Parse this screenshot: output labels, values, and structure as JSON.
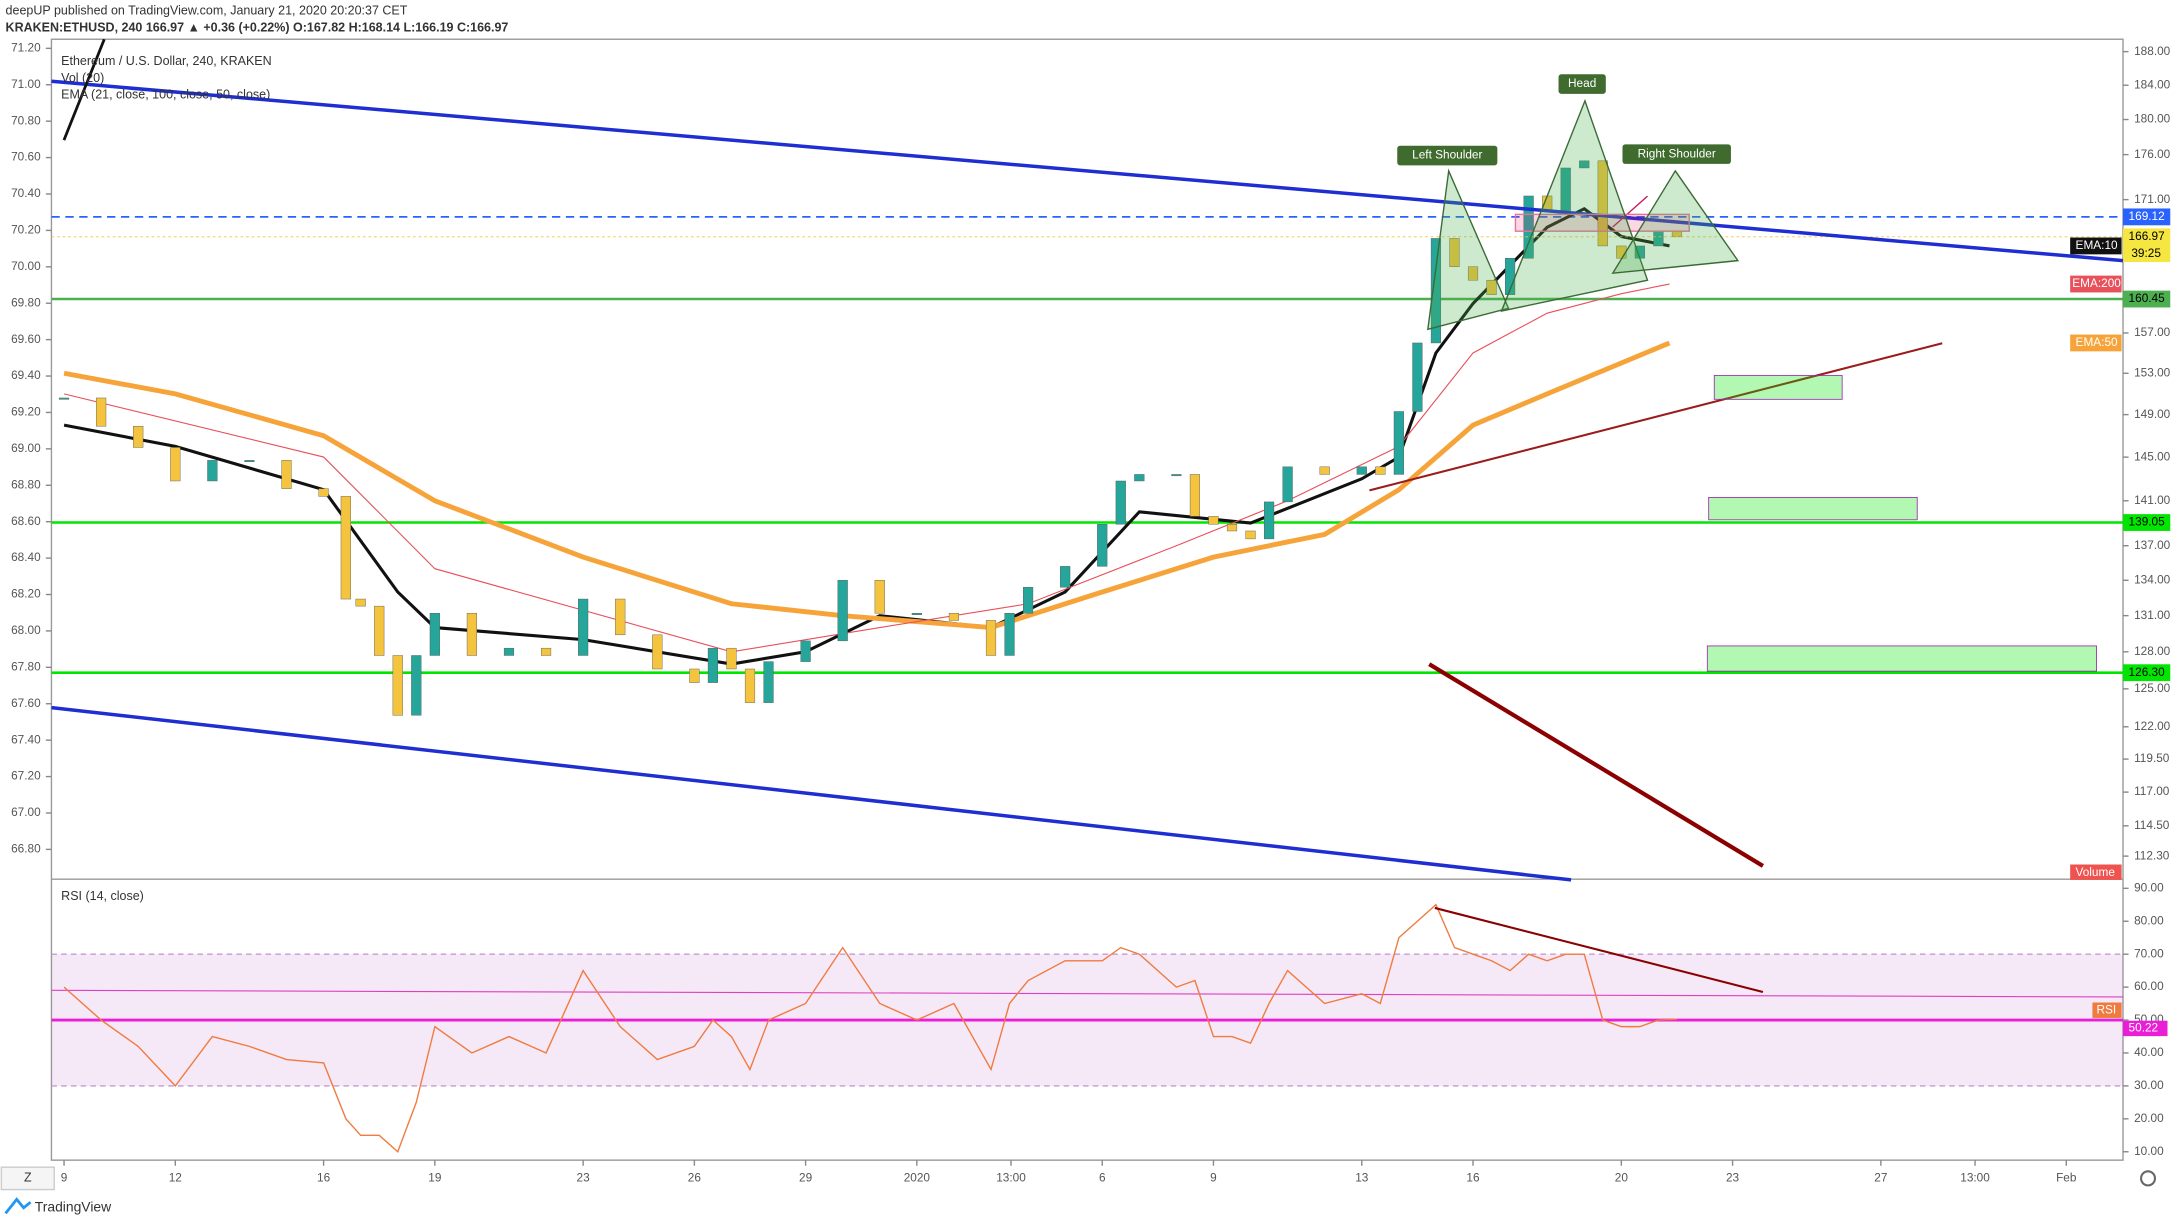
{
  "header": {
    "line1": "deepUP published on TradingView.com, January 21, 2020 20:20:37 CET",
    "line2": "KRAKEN:ETHUSD, 240  166.97 ▲ +0.36 (+0.22%) O:167.82 H:168.14 L:166.19 C:166.97"
  },
  "chart_data": {
    "type": "candlestick",
    "legend": [
      "Ethereum / U.S. Dollar, 240, KRAKEN",
      "Vol (20)",
      "EMA (21, close, 100, close, 50, close)"
    ],
    "x": [
      0,
      1,
      2,
      3,
      4,
      5,
      6,
      7,
      7.6,
      8,
      8.5,
      9,
      9.5,
      10,
      11,
      12,
      13,
      14,
      15,
      16,
      17,
      17.5,
      18,
      18.5,
      19,
      20,
      21,
      22,
      23,
      24,
      25,
      25.5,
      26,
      27,
      28,
      28.5,
      29,
      30,
      30.5,
      31,
      31.5,
      32,
      32.5,
      33,
      34,
      35,
      35.5,
      36,
      36.5,
      37,
      37.5,
      38,
      38.5,
      39,
      39.5,
      40,
      40.5,
      41,
      41.5,
      42,
      42.5,
      43,
      43.5
    ],
    "values": [
      150.6,
      147.9,
      145.9,
      142.8,
      144.7,
      144.7,
      142.1,
      141.4,
      132.4,
      131.8,
      127.7,
      122.9,
      127.7,
      131.2,
      127.7,
      128.3,
      127.7,
      132.4,
      129.4,
      126.6,
      125.5,
      128.3,
      126.6,
      123.9,
      127.2,
      128.9,
      134.0,
      131.2,
      131.2,
      130.6,
      127.7,
      131.2,
      133.4,
      135.2,
      138.9,
      142.8,
      143.4,
      143.4,
      139.6,
      138.9,
      138.3,
      137.6,
      140.9,
      144.1,
      143.4,
      144.1,
      143.4,
      149.3,
      156.0,
      166.8,
      163.8,
      162.4,
      160.9,
      164.7,
      171.4,
      169.8,
      174.5,
      175.3,
      166.0,
      164.7,
      166.0,
      167.6,
      166.97
    ],
    "up_color": "#26a69a",
    "down_color": "#f5c43f",
    "xlim": [
      -0.34,
      55.53
    ],
    "xticks": [
      {
        "value": 0,
        "label": "9"
      },
      {
        "value": 3,
        "label": "12"
      },
      {
        "value": 7,
        "label": "16"
      },
      {
        "value": 10,
        "label": "19"
      },
      {
        "value": 14,
        "label": "23"
      },
      {
        "value": 17,
        "label": "26"
      },
      {
        "value": 20,
        "label": "29"
      },
      {
        "value": 23,
        "label": "2020"
      },
      {
        "value": 25.54,
        "label": "13:00"
      },
      {
        "value": 28,
        "label": "6"
      },
      {
        "value": 31,
        "label": "9"
      },
      {
        "value": 35,
        "label": "13"
      },
      {
        "value": 38,
        "label": "16"
      },
      {
        "value": 42,
        "label": "20"
      },
      {
        "value": 45,
        "label": "23"
      },
      {
        "value": 49,
        "label": "27"
      },
      {
        "value": 51.54,
        "label": "13:00"
      },
      {
        "value": 54,
        "label": "Feb"
      }
    ],
    "yscale": "log",
    "ylim": [
      110.7,
      189.5
    ],
    "yticks": [
      {
        "value": 188,
        "label": "188.00"
      },
      {
        "value": 184,
        "label": "184.00"
      },
      {
        "value": 180,
        "label": "180.00"
      },
      {
        "value": 176,
        "label": "176.00"
      },
      {
        "value": 171,
        "label": "171.00"
      },
      {
        "value": 157,
        "label": "157.00"
      },
      {
        "value": 153,
        "label": "153.00"
      },
      {
        "value": 149,
        "label": "149.00"
      },
      {
        "value": 145,
        "label": "145.00"
      },
      {
        "value": 141,
        "label": "141.00"
      },
      {
        "value": 137,
        "label": "137.00"
      },
      {
        "value": 134,
        "label": "134.00"
      },
      {
        "value": 131,
        "label": "131.00"
      },
      {
        "value": 128,
        "label": "128.00"
      },
      {
        "value": 125,
        "label": "125.00"
      },
      {
        "value": 122,
        "label": "122.00"
      },
      {
        "value": 119.5,
        "label": "119.50"
      },
      {
        "value": 117,
        "label": "117.00"
      },
      {
        "value": 114.5,
        "label": "114.50"
      },
      {
        "value": 112.3,
        "label": "112.30"
      }
    ],
    "y2lim": [
      66.64,
      71.25
    ],
    "y2ticks": [
      {
        "value": 71.2,
        "label": "71.20"
      },
      {
        "value": 71,
        "label": "71.00"
      },
      {
        "value": 70.8,
        "label": "70.80"
      },
      {
        "value": 70.6,
        "label": "70.60"
      },
      {
        "value": 70.4,
        "label": "70.40"
      },
      {
        "value": 70.2,
        "label": "70.20"
      },
      {
        "value": 70,
        "label": "70.00"
      },
      {
        "value": 69.8,
        "label": "69.80"
      },
      {
        "value": 69.6,
        "label": "69.60"
      },
      {
        "value": 69.4,
        "label": "69.40"
      },
      {
        "value": 69.2,
        "label": "69.20"
      },
      {
        "value": 69,
        "label": "69.00"
      },
      {
        "value": 68.8,
        "label": "68.80"
      },
      {
        "value": 68.6,
        "label": "68.60"
      },
      {
        "value": 68.4,
        "label": "68.40"
      },
      {
        "value": 68.2,
        "label": "68.20"
      },
      {
        "value": 68,
        "label": "68.00"
      },
      {
        "value": 67.8,
        "label": "67.80"
      },
      {
        "value": 67.6,
        "label": "67.60"
      },
      {
        "value": 67.4,
        "label": "67.40"
      },
      {
        "value": 67.2,
        "label": "67.20"
      },
      {
        "value": 67,
        "label": "67.00"
      },
      {
        "value": 66.8,
        "label": "66.80"
      }
    ],
    "overlays": [
      {
        "name": "EMA:10",
        "color": "#111111",
        "width": 2.2,
        "x": [
          0,
          3,
          7,
          9,
          10,
          14,
          18,
          20,
          22,
          25,
          27,
          29,
          32,
          35,
          36,
          37,
          38,
          40,
          41,
          42,
          43.3
        ],
        "values": [
          148,
          146,
          142,
          133,
          130,
          129,
          127,
          128,
          131,
          130,
          133,
          140,
          139,
          143,
          145,
          155,
          160,
          168,
          170,
          167,
          166
        ]
      },
      {
        "name": "EMA:50",
        "color": "#f6a43a",
        "width": 3.5,
        "x": [
          0,
          3,
          7,
          10,
          14,
          18,
          21,
          25,
          28,
          31,
          34,
          36,
          38,
          40,
          42,
          43.3
        ],
        "values": [
          153,
          151,
          147,
          141,
          136,
          132,
          131,
          130,
          133,
          136,
          138,
          142,
          148,
          151,
          154,
          156
        ]
      },
      {
        "name": "EMA:200",
        "color": "#e8505b",
        "width": 0.8,
        "x": [
          0,
          7,
          10,
          18,
          22,
          26,
          30,
          33,
          36,
          38,
          40,
          42,
          43.3
        ],
        "values": [
          151,
          145,
          135,
          128,
          130,
          132,
          137,
          141,
          146,
          155,
          159,
          161,
          162
        ]
      }
    ],
    "levels": [
      {
        "value": 169.12,
        "color": "#2962ff",
        "dashed": true
      },
      {
        "value": 160.45,
        "color": "#4caf50",
        "dashed": false
      },
      {
        "value": 139.05,
        "color": "#00e600",
        "dashed": false
      },
      {
        "value": 126.3,
        "label": "126.30",
        "color": "#00e600",
        "dashed": false
      }
    ],
    "countdown": "39:25",
    "annotations": [
      "Left Shoulder",
      "Head",
      "Right Shoulder"
    ],
    "volume_label": "Volume",
    "rsi": {
      "title": "RSI (14, close)",
      "name": "RSI",
      "color": "#f07b3f",
      "values": [
        60,
        50,
        42,
        30,
        45,
        42,
        38,
        37,
        20,
        15,
        15,
        10,
        25,
        48,
        40,
        45,
        40,
        65,
        48,
        38,
        42,
        50,
        45,
        35,
        50,
        55,
        72,
        55,
        50,
        55,
        35,
        55,
        62,
        68,
        68,
        72,
        70,
        60,
        62,
        45,
        45,
        43,
        55,
        65,
        55,
        58,
        55,
        75,
        80,
        85,
        72,
        70,
        68,
        65,
        70,
        68,
        70,
        70,
        50,
        48,
        48,
        50,
        50.22
      ],
      "ylim": [
        7.45,
        92.55
      ],
      "yticks": [
        {
          "value": 90,
          "label": "90.00"
        },
        {
          "value": 80,
          "label": "80.00"
        },
        {
          "value": 70,
          "label": "70.00"
        },
        {
          "value": 60,
          "label": "60.00"
        },
        {
          "value": 50,
          "label": "50.00"
        },
        {
          "value": 40,
          "label": "40.00"
        },
        {
          "value": 30,
          "label": "30.00"
        },
        {
          "value": 20,
          "label": "20.00"
        },
        {
          "value": 10,
          "label": "10.00"
        }
      ],
      "band": [
        30,
        70
      ],
      "mid": 50,
      "ma": {
        "x": [
          -0.34,
          55.53
        ],
        "values": [
          59,
          57
        ]
      }
    }
  },
  "footer": {
    "brand": "TradingView",
    "z": "Z"
  }
}
